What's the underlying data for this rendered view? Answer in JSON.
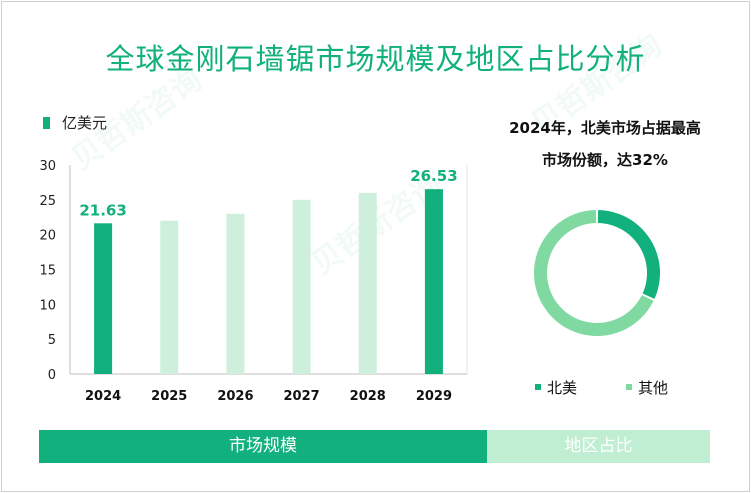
{
  "title": "全球金刚石墙锯市场规模及地区占比分析",
  "unit_label": "亿美元",
  "note_line1": "2024年，北美市场占据最高",
  "note_line2": "市场份额，达32%",
  "pie_legend": [
    "北美",
    "其他"
  ],
  "tabs": {
    "active": "市场规模",
    "inactive": "地区占比"
  },
  "colors": {
    "accent": "#11b07c",
    "light_bar": "#cdefdc",
    "pie_other": "#7fd9a0"
  },
  "chart_data": [
    {
      "type": "bar",
      "categories": [
        "2024",
        "2025",
        "2026",
        "2027",
        "2028",
        "2029"
      ],
      "values": [
        21.63,
        22.0,
        23.0,
        25.0,
        26.0,
        26.53
      ],
      "data_labels": {
        "2024": "21.63",
        "2029": "26.53"
      },
      "highlighted": [
        "2024",
        "2029"
      ],
      "ylim": [
        0,
        30
      ],
      "yticks": [
        "0",
        "5",
        "10",
        "15",
        "20",
        "25",
        "30"
      ],
      "ylabel": "亿美元",
      "grid": false
    },
    {
      "type": "pie",
      "donut": true,
      "labels": [
        "北美",
        "其他"
      ],
      "values": [
        32,
        68
      ]
    }
  ]
}
